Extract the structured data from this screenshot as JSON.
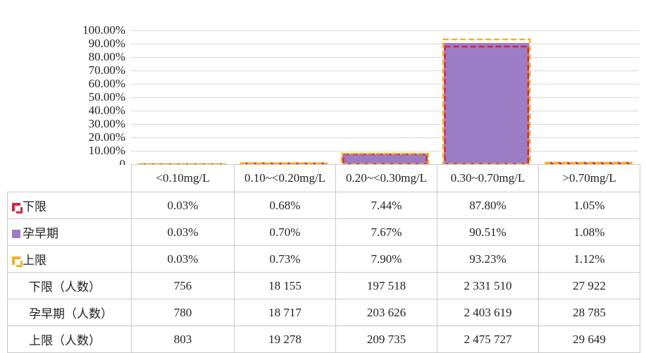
{
  "chart_data": {
    "type": "bar",
    "categories": [
      "<0.10mg/L",
      "0.10~<0.20mg/L",
      "0.20~<0.30mg/L",
      "0.30~0.70mg/L",
      ">0.70mg/L"
    ],
    "ylim": [
      0,
      100
    ],
    "yticks": [
      "100.00%",
      "90.00%",
      "80.00%",
      "70.00%",
      "60.00%",
      "50.00%",
      "40.00%",
      "30.00%",
      "20.00%",
      "10.00%",
      "0"
    ],
    "series": [
      {
        "name": "下限",
        "values": [
          0.03,
          0.68,
          7.44,
          87.8,
          1.05
        ],
        "labels": [
          "0.03%",
          "0.68%",
          "7.44%",
          "87.80%",
          "1.05%"
        ],
        "style": "dashed-outline",
        "color": "#d8263c"
      },
      {
        "name": "孕早期",
        "values": [
          0.03,
          0.7,
          7.67,
          90.51,
          1.08
        ],
        "labels": [
          "0.03%",
          "0.70%",
          "7.67%",
          "90.51%",
          "1.08%"
        ],
        "style": "filled-bar",
        "color": "#9d7cc6"
      },
      {
        "name": "上限",
        "values": [
          0.03,
          0.73,
          7.9,
          93.23,
          1.12
        ],
        "labels": [
          "0.03%",
          "0.73%",
          "7.90%",
          "93.23%",
          "1.12%"
        ],
        "style": "dashed-outline",
        "color": "#f0b323"
      }
    ],
    "count_rows": [
      {
        "name": "下限（人数）",
        "values": [
          "756",
          "18 155",
          "197 518",
          "2 331 510",
          "27 922"
        ]
      },
      {
        "name": "孕早期（人数）",
        "values": [
          "780",
          "18 717",
          "203 626",
          "2 403 619",
          "28 785"
        ]
      },
      {
        "name": "上限（人数）",
        "values": [
          "803",
          "19 278",
          "209 735",
          "2 475 727",
          "29 649"
        ]
      }
    ],
    "grid": true,
    "legend": "table-rows"
  }
}
